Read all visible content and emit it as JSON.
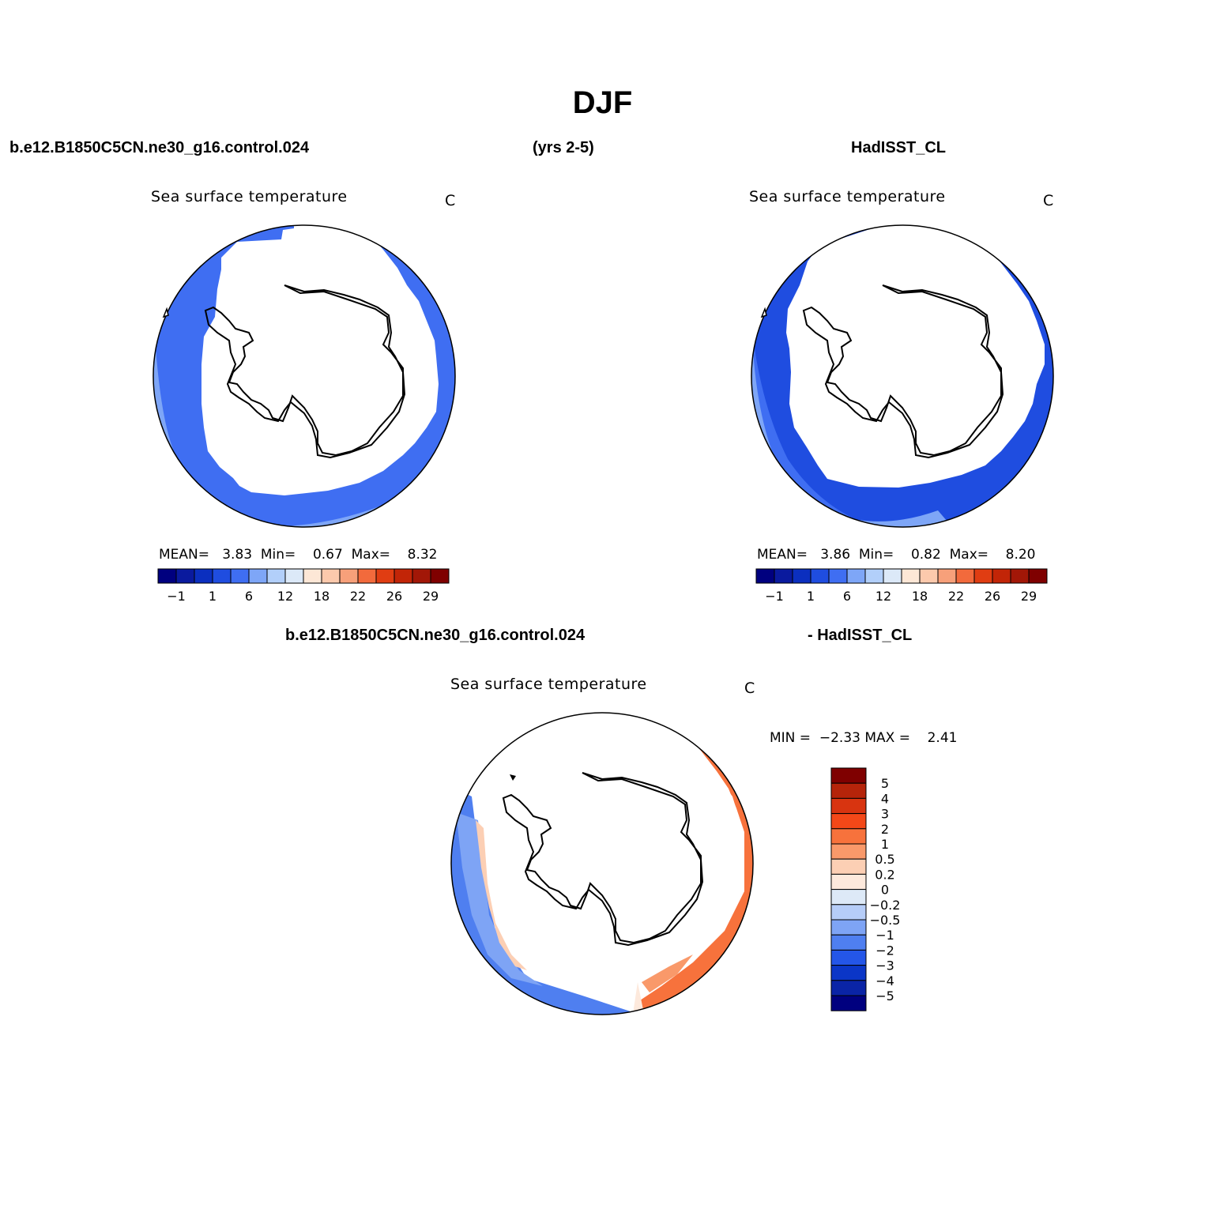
{
  "title": "DJF",
  "header": {
    "case_name": "b.e12.B1850C5CN.ne30_g16.control.024",
    "years": "(yrs 2-5)",
    "obs_name": "HadISST_CL",
    "diff_case": "b.e12.B1850C5CN.ne30_g16.control.024",
    "diff_obs": "- HadISST_CL"
  },
  "panels": [
    {
      "id": "model",
      "title": "Sea surface temperature",
      "units": "C",
      "mean_label": "MEAN=",
      "mean": "3.83",
      "min_label": "Min=",
      "min": "0.67",
      "max_label": "Max=",
      "max": "8.32"
    },
    {
      "id": "obs",
      "title": "Sea surface temperature",
      "units": "C",
      "mean_label": "MEAN=",
      "mean": "3.86",
      "min_label": "Min=",
      "min": "0.82",
      "max_label": "Max=",
      "max": "8.20"
    },
    {
      "id": "difference",
      "title": "Sea surface temperature",
      "units": "C",
      "min_label": "MIN =",
      "min": "−2.33",
      "max_label": "MAX =",
      "max": "2.41"
    }
  ],
  "colorbar_abs": {
    "colors": [
      "#00007f",
      "#0a1a9e",
      "#0b2fbf",
      "#1f4de0",
      "#3f6ef2",
      "#7ea6f7",
      "#b2cffa",
      "#dce9f8",
      "#fde7d6",
      "#fcc9ac",
      "#f7a07a",
      "#f26a3c",
      "#e03d12",
      "#c22507",
      "#a21707",
      "#7f0000"
    ],
    "tick_labels": [
      "−1",
      "1",
      "6",
      "12",
      "18",
      "22",
      "26",
      "29"
    ]
  },
  "colorbar_diff": {
    "colors": [
      "#7f0000",
      "#b5240a",
      "#d83410",
      "#f44818",
      "#f7723c",
      "#f9996a",
      "#fccfb4",
      "#fde9dc",
      "#dde9f7",
      "#b6cdf8",
      "#7ea4f5",
      "#4f7ff0",
      "#2456e8",
      "#0b36c7",
      "#0a24a6",
      "#00007f"
    ],
    "tick_labels": [
      "5",
      "4",
      "3",
      "2",
      "1",
      "0.5",
      "0.2",
      "0",
      "−0.2",
      "−0.5",
      "−1",
      "−2",
      "−3",
      "−4",
      "−5"
    ]
  }
}
